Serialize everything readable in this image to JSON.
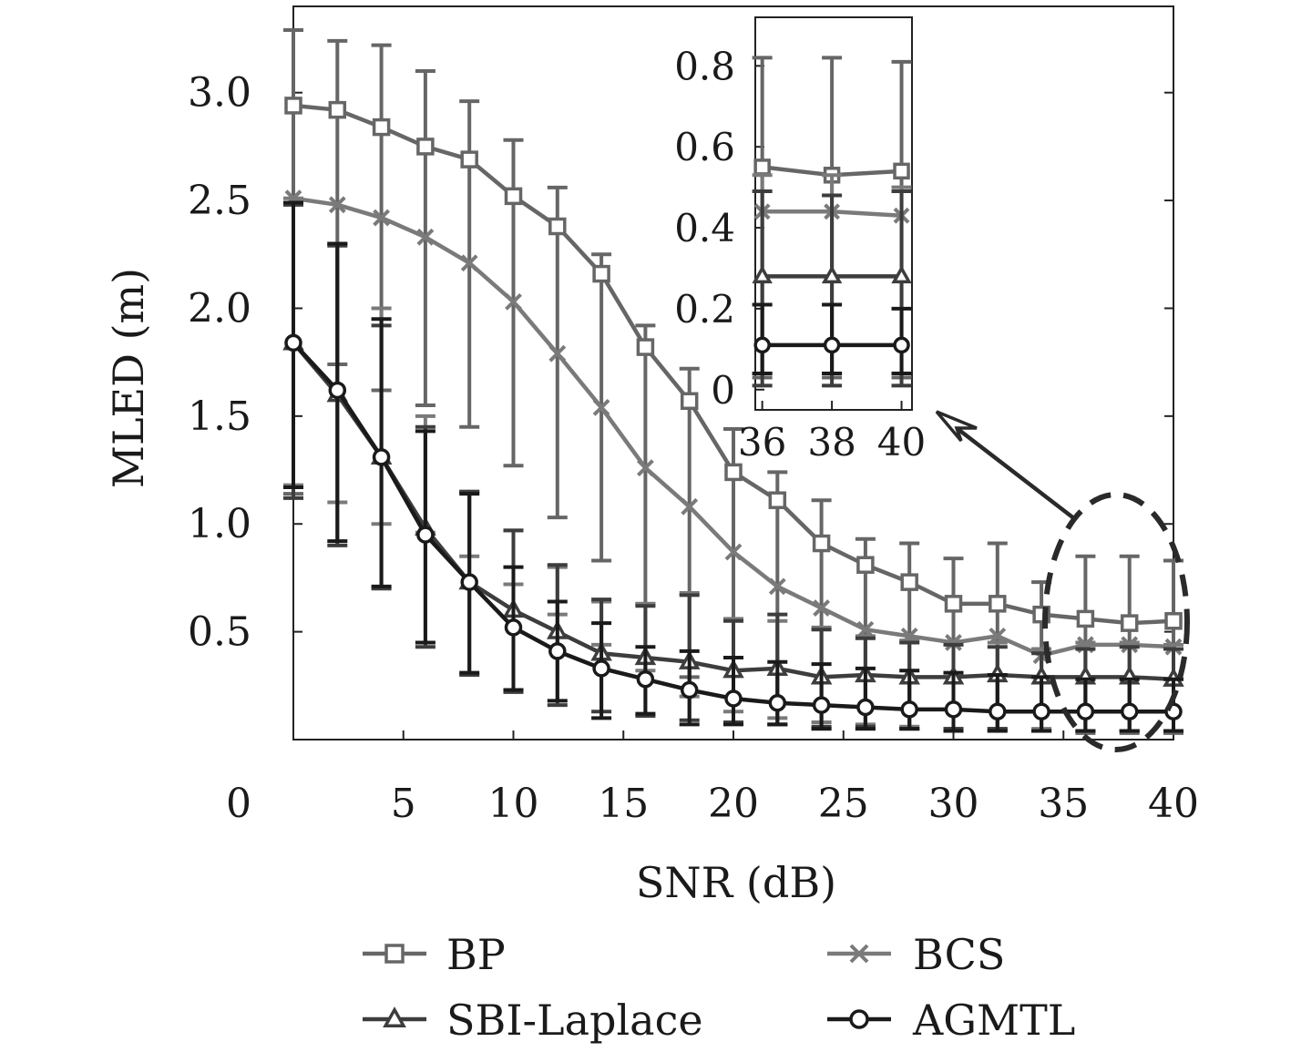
{
  "chart_data": [
    {
      "type": "line",
      "xlabel": "SNR (dB)",
      "ylabel": "MLED (m)",
      "xlim": [
        0,
        40
      ],
      "ylim": [
        0,
        3.4
      ],
      "xticks": [
        0,
        5,
        10,
        15,
        20,
        25,
        30,
        35,
        40
      ],
      "xtick_labels": [
        "0",
        "5",
        "10",
        "15",
        "20",
        "25",
        "30",
        "35",
        "40"
      ],
      "yticks": [
        0.5,
        1.0,
        1.5,
        2.0,
        2.5,
        3.0
      ],
      "ytick_labels": [
        "0.5",
        "1.0",
        "1.5",
        "2.0",
        "2.5",
        "3.0"
      ],
      "grid": false,
      "legend_position": "bottom",
      "x": [
        0,
        2,
        4,
        6,
        8,
        10,
        12,
        14,
        16,
        18,
        20,
        22,
        24,
        26,
        28,
        30,
        32,
        34,
        36,
        38,
        40
      ],
      "series": [
        {
          "name": "BP",
          "color": "#666666",
          "marker": "square",
          "values": [
            2.94,
            2.92,
            2.84,
            2.75,
            2.69,
            2.52,
            2.38,
            2.16,
            1.82,
            1.57,
            1.24,
            1.11,
            0.91,
            0.81,
            0.73,
            0.63,
            0.63,
            0.58,
            0.56,
            0.54,
            0.55
          ],
          "error_low": [
            1.14,
            1.74,
            1.62,
            1.55,
            1.45,
            1.27,
            1.03,
            0.83,
            0.63,
            0.29,
            0.08,
            0.07,
            0.05,
            0.05,
            0.05,
            0.04,
            0.04,
            0.04,
            0.03,
            0.03,
            0.03
          ],
          "error_high": [
            3.29,
            3.24,
            3.22,
            3.1,
            2.96,
            2.78,
            2.56,
            2.25,
            1.92,
            1.72,
            1.44,
            1.24,
            1.11,
            0.93,
            0.91,
            0.84,
            0.91,
            0.73,
            0.85,
            0.85,
            0.83
          ]
        },
        {
          "name": "BCS",
          "color": "#7a7a7a",
          "marker": "x",
          "values": [
            2.51,
            2.48,
            2.42,
            2.33,
            2.21,
            2.03,
            1.79,
            1.54,
            1.26,
            1.08,
            0.87,
            0.71,
            0.61,
            0.51,
            0.48,
            0.45,
            0.48,
            0.39,
            0.44,
            0.44,
            0.43
          ],
          "error_low": [
            1.18,
            1.1,
            1.0,
            0.96,
            0.85,
            0.72,
            0.58,
            0.44,
            0.32,
            0.2,
            0.13,
            0.1,
            0.08,
            0.07,
            0.06,
            0.05,
            0.05,
            0.05,
            0.04,
            0.04,
            0.04
          ],
          "error_high": [
            2.51,
            2.3,
            2.0,
            1.5,
            1.15,
            0.97,
            0.8,
            0.64,
            0.63,
            0.68,
            0.56,
            0.55,
            0.52,
            0.48,
            0.46,
            0.45,
            0.45,
            0.42,
            0.45,
            0.45,
            0.44
          ]
        },
        {
          "name": "SBI-Laplace",
          "color": "#3d3d3d",
          "marker": "triangle",
          "values": [
            1.84,
            1.6,
            1.31,
            0.98,
            0.73,
            0.6,
            0.5,
            0.4,
            0.38,
            0.36,
            0.32,
            0.33,
            0.29,
            0.3,
            0.29,
            0.29,
            0.3,
            0.29,
            0.29,
            0.29,
            0.28
          ],
          "error_low": [
            1.12,
            0.9,
            0.7,
            0.43,
            0.3,
            0.22,
            0.16,
            0.13,
            0.11,
            0.09,
            0.08,
            0.07,
            0.06,
            0.06,
            0.05,
            0.05,
            0.05,
            0.04,
            0.04,
            0.04,
            0.04
          ],
          "error_high": [
            2.48,
            2.29,
            1.92,
            1.45,
            1.15,
            0.97,
            0.81,
            0.65,
            0.62,
            0.67,
            0.55,
            0.58,
            0.51,
            0.47,
            0.45,
            0.44,
            0.43,
            0.4,
            0.42,
            0.43,
            0.42
          ]
        },
        {
          "name": "AGMTL",
          "color": "#1a1a1a",
          "marker": "circle",
          "values": [
            1.84,
            1.62,
            1.31,
            0.95,
            0.73,
            0.52,
            0.41,
            0.33,
            0.28,
            0.23,
            0.19,
            0.17,
            0.16,
            0.15,
            0.14,
            0.14,
            0.13,
            0.13,
            0.13,
            0.13,
            0.13
          ],
          "error_low": [
            1.17,
            0.92,
            0.71,
            0.45,
            0.31,
            0.23,
            0.18,
            0.1,
            0.12,
            0.07,
            0.07,
            0.07,
            0.05,
            0.05,
            0.05,
            0.04,
            0.04,
            0.04,
            0.04,
            0.04,
            0.04
          ],
          "error_high": [
            2.49,
            2.3,
            1.95,
            1.43,
            1.14,
            0.8,
            0.64,
            0.54,
            0.43,
            0.41,
            0.38,
            0.36,
            0.35,
            0.33,
            0.32,
            0.31,
            0.3,
            0.29,
            0.28,
            0.28,
            0.28
          ]
        }
      ],
      "legend": [
        "BP",
        "BCS",
        "SBI-Laplace",
        "AGMTL"
      ]
    },
    {
      "type": "line",
      "role": "inset",
      "xlim": [
        35.8,
        40.3
      ],
      "ylim": [
        -0.05,
        0.92
      ],
      "xticks": [
        36,
        38,
        40
      ],
      "xtick_labels": [
        "36",
        "38",
        "40"
      ],
      "yticks": [
        0,
        0.2,
        0.4,
        0.6,
        0.8
      ],
      "ytick_labels": [
        "0",
        "0.2",
        "0.4",
        "0.6",
        "0.8"
      ],
      "x": [
        36,
        38,
        40
      ],
      "series": [
        {
          "name": "BP",
          "values": [
            0.55,
            0.53,
            0.54
          ],
          "error_low": [
            0.03,
            0.03,
            0.03
          ],
          "error_high": [
            0.82,
            0.82,
            0.81
          ]
        },
        {
          "name": "BCS",
          "values": [
            0.44,
            0.44,
            0.43
          ],
          "error_low": [
            0.04,
            0.04,
            0.04
          ],
          "error_high": [
            0.53,
            0.53,
            0.5
          ]
        },
        {
          "name": "SBI-Laplace",
          "values": [
            0.28,
            0.28,
            0.28
          ],
          "error_low": [
            0.01,
            0.01,
            0.01
          ],
          "error_high": [
            0.49,
            0.48,
            0.49
          ]
        },
        {
          "name": "AGMTL",
          "values": [
            0.11,
            0.11,
            0.11
          ],
          "error_low": [
            0.04,
            0.04,
            0.04
          ],
          "error_high": [
            0.21,
            0.21,
            0.2
          ]
        }
      ]
    }
  ]
}
